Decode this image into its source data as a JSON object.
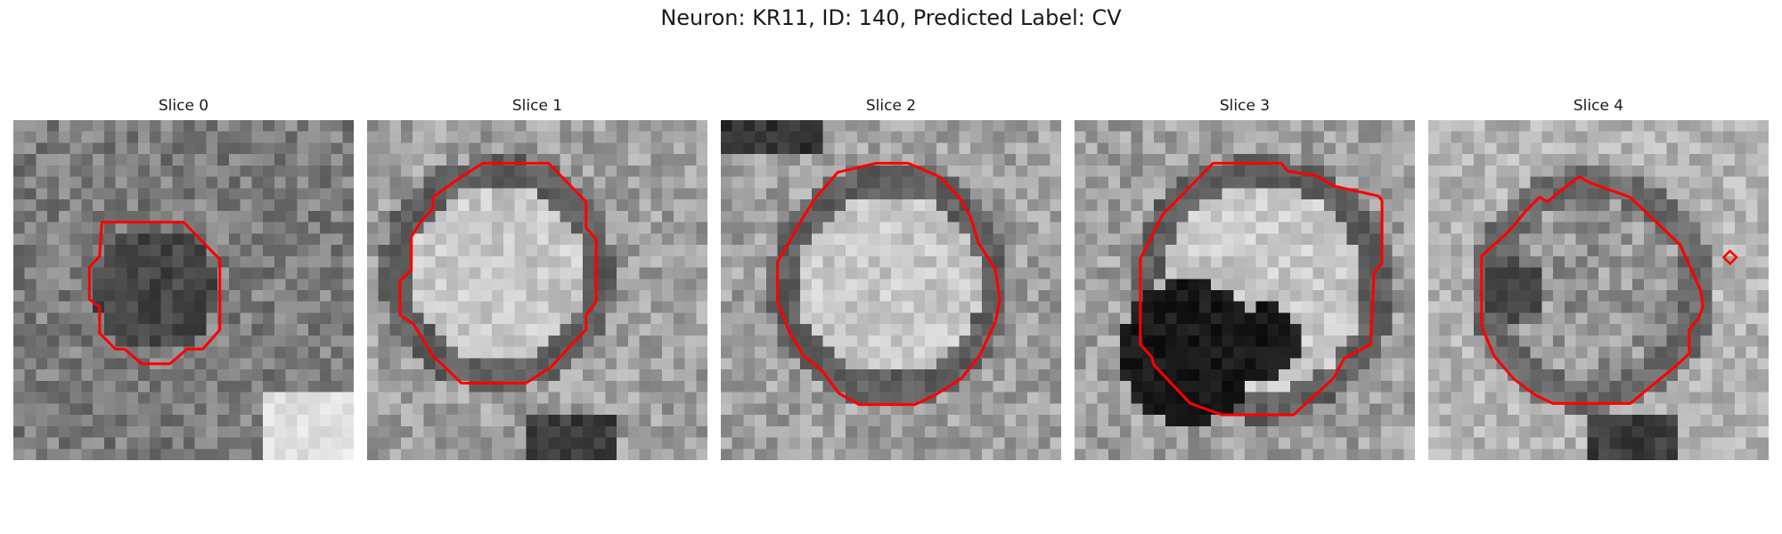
{
  "figure": {
    "title": "Neuron: KR11, ID: 140, Predicted Label: CV"
  },
  "contour_color": "#ff0000",
  "panels": [
    {
      "title": "Slice 0",
      "seed": 7,
      "center_level": "dark",
      "blob": "none"
    },
    {
      "title": "Slice 1",
      "seed": 19,
      "center_level": "bright",
      "blob": "bottom"
    },
    {
      "title": "Slice 2",
      "seed": 31,
      "center_level": "bright",
      "blob": "top-left"
    },
    {
      "title": "Slice 3",
      "seed": 43,
      "center_level": "bright",
      "blob": "bottom-left"
    },
    {
      "title": "Slice 4",
      "seed": 59,
      "center_level": "mixed",
      "blob": "bottom"
    }
  ]
}
